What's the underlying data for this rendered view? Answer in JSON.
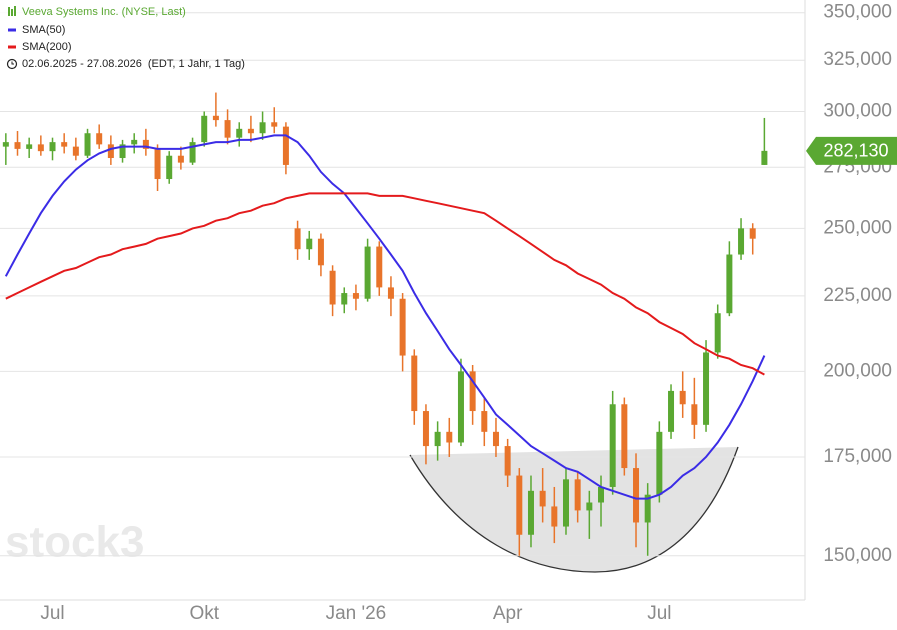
{
  "chart_data": {
    "type": "ohlc",
    "title": "Veeva Systems Inc. (NYSE, Last)",
    "subtitle": "02.06.2025 - 27.08.2026",
    "note": "(EDT, 1 Jahr, 1 Tag)",
    "watermark": "stock3",
    "log_scale": true,
    "grid": true,
    "up_color": "#5aa832",
    "down_color": "#e8742a",
    "ylim": [
      140000,
      357000
    ],
    "yticks": [
      {
        "value": 150000,
        "label": "150,000"
      },
      {
        "value": 175000,
        "label": "175,000"
      },
      {
        "value": 200000,
        "label": "200,000"
      },
      {
        "value": 225000,
        "label": "225,000"
      },
      {
        "value": 250000,
        "label": "250,000"
      },
      {
        "value": 275000,
        "label": "275,000"
      },
      {
        "value": 300000,
        "label": "300,000"
      },
      {
        "value": 325000,
        "label": "325,000"
      },
      {
        "value": 350000,
        "label": "350,000"
      }
    ],
    "last_price": {
      "value": 282130,
      "label": "282,130"
    },
    "categories": [
      null,
      null,
      null,
      null,
      "Jul",
      null,
      null,
      null,
      null,
      null,
      null,
      null,
      null,
      null,
      null,
      null,
      null,
      "Okt",
      null,
      null,
      null,
      null,
      null,
      null,
      null,
      null,
      null,
      null,
      null,
      null,
      "Jan '26",
      null,
      null,
      null,
      null,
      null,
      null,
      null,
      null,
      null,
      null,
      null,
      null,
      "Apr",
      null,
      null,
      null,
      null,
      null,
      null,
      null,
      null,
      null,
      null,
      null,
      null,
      "Jul",
      null,
      null,
      null,
      null,
      null,
      null,
      null,
      null,
      null
    ],
    "open": [
      284000,
      286000,
      283000,
      285000,
      282000,
      286000,
      284000,
      280000,
      290000,
      285000,
      279000,
      285000,
      287000,
      283000,
      270000,
      280000,
      277000,
      286000,
      298000,
      296000,
      288000,
      292000,
      290000,
      295000,
      293000,
      250000,
      242000,
      246000,
      234000,
      222000,
      226000,
      224000,
      243000,
      228000,
      224000,
      205000,
      188000,
      178000,
      182000,
      179000,
      200000,
      188000,
      182000,
      178000,
      170000,
      155000,
      166000,
      162000,
      157000,
      169000,
      161000,
      163000,
      167000,
      190000,
      172000,
      158000,
      165000,
      182000,
      194000,
      190000,
      184000,
      206000,
      219000,
      240000,
      250000,
      276000
    ],
    "high": [
      290000,
      291000,
      288000,
      289000,
      288000,
      290000,
      288000,
      292000,
      294000,
      289000,
      287000,
      290000,
      292000,
      285000,
      282000,
      284000,
      288000,
      300000,
      309000,
      301000,
      295000,
      298000,
      300000,
      302000,
      295000,
      253000,
      249000,
      248000,
      236000,
      228000,
      229000,
      246000,
      245000,
      232000,
      226000,
      207000,
      190000,
      185000,
      186000,
      204000,
      202000,
      192000,
      186000,
      180000,
      172000,
      170000,
      172000,
      167000,
      172000,
      171000,
      166000,
      170000,
      194000,
      192000,
      176000,
      168000,
      185000,
      196000,
      200000,
      198000,
      210000,
      222000,
      245000,
      254000,
      252000,
      297000
    ],
    "low": [
      276000,
      280000,
      279000,
      280000,
      278000,
      281000,
      278000,
      279000,
      283000,
      276000,
      277000,
      281000,
      280000,
      265000,
      268000,
      274000,
      276000,
      284000,
      293000,
      285000,
      284000,
      286000,
      287000,
      290000,
      272000,
      238000,
      238000,
      232000,
      218000,
      219000,
      220000,
      223000,
      225000,
      218000,
      200000,
      184000,
      173000,
      174000,
      175000,
      178000,
      184000,
      178000,
      175000,
      167000,
      150000,
      152000,
      158000,
      153000,
      155000,
      158000,
      154000,
      157000,
      165000,
      170000,
      152000,
      150000,
      163000,
      180000,
      186000,
      180000,
      182000,
      204000,
      218000,
      238000,
      240000,
      276000
    ],
    "close": [
      286000,
      283000,
      285000,
      282000,
      286000,
      284000,
      280000,
      290000,
      285000,
      279000,
      285000,
      287000,
      283000,
      270000,
      280000,
      277000,
      286000,
      298000,
      296000,
      288000,
      292000,
      290000,
      295000,
      293000,
      276000,
      242000,
      246000,
      236000,
      222000,
      226000,
      224000,
      243000,
      228000,
      224000,
      205000,
      188000,
      178000,
      182000,
      179000,
      200000,
      188000,
      182000,
      178000,
      170000,
      155000,
      166000,
      162000,
      157000,
      169000,
      161000,
      163000,
      167000,
      190000,
      172000,
      158000,
      165000,
      182000,
      194000,
      190000,
      184000,
      206000,
      219000,
      240000,
      250000,
      246000,
      282130
    ],
    "series": [
      {
        "name": "SMA(50)",
        "color": "#3b2ce6",
        "values": [
          232000,
          240000,
          248000,
          256000,
          263000,
          269000,
          274000,
          278000,
          281000,
          283000,
          284000,
          284000,
          284000,
          283000,
          283000,
          283000,
          284000,
          285000,
          286000,
          286000,
          287000,
          287000,
          288000,
          289000,
          289000,
          286000,
          280000,
          273000,
          268000,
          264000,
          258000,
          252000,
          246000,
          240000,
          234000,
          226000,
          219000,
          213000,
          207000,
          202000,
          197000,
          192000,
          187000,
          184000,
          181000,
          178000,
          176000,
          174000,
          172000,
          171000,
          169000,
          167000,
          166000,
          165000,
          164000,
          164000,
          165000,
          167000,
          170000,
          172000,
          175000,
          179000,
          184000,
          190000,
          197000,
          205000
        ]
      },
      {
        "name": "SMA(200)",
        "color": "#e41a1c",
        "values": [
          224000,
          226000,
          228000,
          230000,
          232000,
          234000,
          235000,
          237000,
          239000,
          240000,
          242000,
          243000,
          244000,
          246000,
          247000,
          248000,
          250000,
          251000,
          253000,
          254000,
          256000,
          257000,
          259000,
          260000,
          262000,
          263000,
          264000,
          264000,
          264000,
          264000,
          264000,
          264000,
          263000,
          263000,
          263000,
          262000,
          261000,
          260000,
          259000,
          258000,
          257000,
          256000,
          253000,
          250000,
          247000,
          244000,
          241000,
          238000,
          236000,
          233000,
          231000,
          229000,
          226000,
          224000,
          221000,
          219000,
          216000,
          214000,
          212000,
          209000,
          207000,
          205000,
          204000,
          202000,
          201000,
          199000
        ]
      }
    ]
  }
}
